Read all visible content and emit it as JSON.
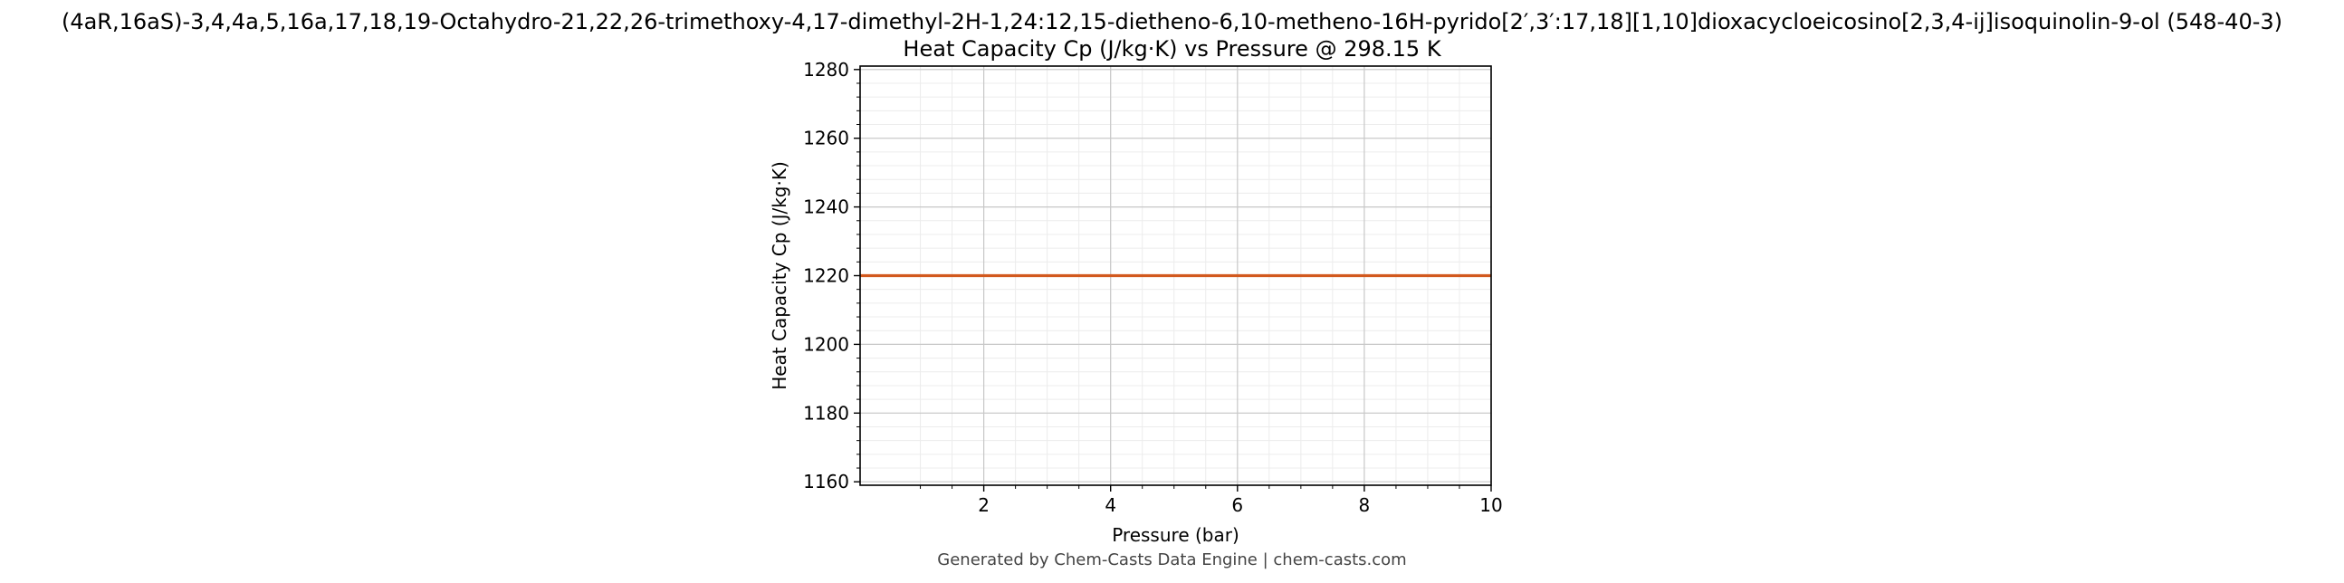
{
  "chart_data": {
    "type": "line",
    "title": "(4aR,16aS)-3,4,4a,5,16a,17,18,19-Octahydro-21,22,26-trimethoxy-4,17-dimethyl-2H-1,24:12,15-dietheno-6,10-metheno-16H-pyrido[2′,3′:17,18][1,10]dioxacycloeicosino[2,3,4-ij]isoquinolin-9-ol (548-40-3)",
    "subtitle": "Heat Capacity Cp (J/kg·K) vs Pressure @ 298.15 K",
    "xlabel": "Pressure (bar)",
    "ylabel": "Heat Capacity Cp (J/kg·K)",
    "xlim": [
      0.05,
      10
    ],
    "ylim": [
      1159,
      1281
    ],
    "xticks": [
      2,
      4,
      6,
      8,
      10
    ],
    "xtick_labels": [
      "2",
      "4",
      "6",
      "8",
      "10"
    ],
    "yticks": [
      1160,
      1180,
      1200,
      1220,
      1240,
      1260,
      1280
    ],
    "ytick_labels": [
      "1160",
      "1180",
      "1200",
      "1220",
      "1240",
      "1260",
      "1280"
    ],
    "grid": true,
    "series": [
      {
        "color": "#d2591e",
        "x": [
          0.05,
          1,
          2,
          3,
          4,
          5,
          6,
          7,
          8,
          9,
          10
        ],
        "y": [
          1220,
          1220,
          1220,
          1220,
          1220,
          1220,
          1220,
          1220,
          1220,
          1220,
          1220
        ]
      }
    ]
  },
  "footer": "Generated by Chem-Casts Data Engine | chem-casts.com"
}
